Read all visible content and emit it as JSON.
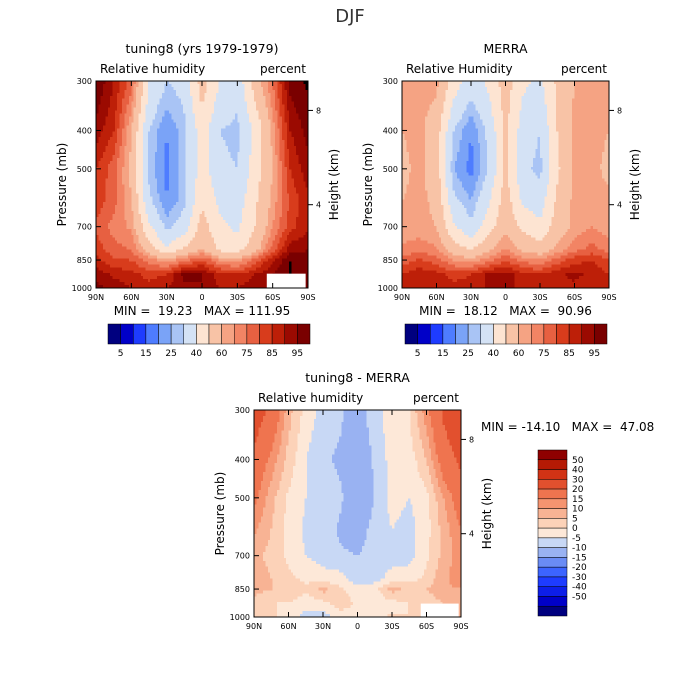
{
  "figure": {
    "title": "DJF"
  },
  "chart_data": [
    {
      "type": "heatmap",
      "id": "p1",
      "title": "tuning8 (yrs 1979-1979)",
      "left_label": "Relative humidity",
      "right_label": "percent",
      "ylabel": "Pressure (mb)",
      "y2label": "Height (km)",
      "x_ticks": [
        "90N",
        "60N",
        "30N",
        "0",
        "30S",
        "60S",
        "90S"
      ],
      "y_ticks": [
        "300",
        "400",
        "500",
        "700",
        "850",
        "1000"
      ],
      "y_tick_values": [
        300,
        400,
        500,
        700,
        850,
        1000
      ],
      "y2_ticks": [
        "8",
        "4"
      ],
      "y2_tick_pressures": [
        356,
        616
      ],
      "stats": "MIN =  19.23   MAX = 111.95",
      "xlim": [
        90,
        -90
      ],
      "ylim": [
        300,
        1000
      ],
      "grid": false,
      "palette": "rh",
      "blank_region": {
        "lat": [
          -55,
          -88
        ],
        "p": [
          920,
          1000
        ]
      },
      "field_nodes_lat": [
        90,
        75,
        60,
        45,
        30,
        15,
        0,
        -15,
        -30,
        -45,
        -60,
        -75,
        -90
      ],
      "field_nodes_p": [
        300,
        400,
        500,
        600,
        700,
        800,
        850,
        925,
        1000
      ],
      "field_values": [
        [
          95,
          85,
          72,
          40,
          30,
          33,
          55,
          40,
          33,
          55,
          70,
          92,
          96
        ],
        [
          88,
          80,
          60,
          30,
          20,
          28,
          45,
          30,
          28,
          42,
          62,
          85,
          92
        ],
        [
          80,
          72,
          58,
          28,
          18,
          28,
          45,
          32,
          30,
          45,
          60,
          80,
          88
        ],
        [
          78,
          72,
          60,
          32,
          20,
          28,
          48,
          38,
          35,
          48,
          62,
          76,
          84
        ],
        [
          74,
          68,
          64,
          42,
          28,
          35,
          55,
          42,
          38,
          50,
          65,
          78,
          84
        ],
        [
          78,
          72,
          70,
          55,
          42,
          52,
          60,
          48,
          46,
          56,
          72,
          88,
          90
        ],
        [
          82,
          76,
          75,
          68,
          62,
          68,
          75,
          65,
          62,
          72,
          84,
          95,
          92
        ],
        [
          88,
          84,
          82,
          78,
          80,
          92,
          90,
          82,
          80,
          85,
          90,
          95,
          92
        ],
        [
          92,
          88,
          85,
          82,
          85,
          88,
          90,
          85,
          85,
          88,
          90,
          95,
          92
        ]
      ]
    },
    {
      "type": "heatmap",
      "id": "p2",
      "title": "MERRA",
      "left_label": "Relative Humidity",
      "right_label": "percent",
      "ylabel": "Pressure (mb)",
      "y2label": "Height (km)",
      "x_ticks": [
        "90N",
        "60N",
        "30N",
        "0",
        "30S",
        "60S",
        "90S"
      ],
      "y_ticks": [
        "300",
        "400",
        "500",
        "700",
        "850",
        "1000"
      ],
      "y_tick_values": [
        300,
        400,
        500,
        700,
        850,
        1000
      ],
      "y2_ticks": [
        "8",
        "4"
      ],
      "y2_tick_pressures": [
        356,
        616
      ],
      "stats": "MIN =  18.12   MAX =  90.96",
      "xlim": [
        90,
        -90
      ],
      "ylim": [
        300,
        1000
      ],
      "grid": false,
      "palette": "rh",
      "blank_region": null,
      "field_nodes_lat": [
        90,
        75,
        60,
        45,
        30,
        15,
        0,
        -15,
        -30,
        -45,
        -60,
        -75,
        -90
      ],
      "field_nodes_p": [
        300,
        400,
        500,
        600,
        700,
        800,
        850,
        925,
        1000
      ],
      "field_values": [
        [
          62,
          62,
          62,
          45,
          35,
          42,
          55,
          42,
          38,
          52,
          60,
          62,
          62
        ],
        [
          60,
          62,
          55,
          30,
          20,
          32,
          52,
          35,
          30,
          50,
          62,
          62,
          60
        ],
        [
          58,
          62,
          55,
          25,
          18,
          30,
          52,
          32,
          28,
          48,
          62,
          62,
          58
        ],
        [
          60,
          62,
          58,
          32,
          25,
          38,
          55,
          38,
          35,
          52,
          62,
          62,
          62
        ],
        [
          62,
          62,
          60,
          42,
          32,
          45,
          58,
          48,
          42,
          55,
          62,
          65,
          62
        ],
        [
          66,
          68,
          66,
          55,
          50,
          58,
          66,
          58,
          55,
          62,
          68,
          72,
          68
        ],
        [
          72,
          76,
          72,
          65,
          62,
          68,
          74,
          68,
          66,
          72,
          78,
          80,
          75
        ],
        [
          80,
          84,
          82,
          78,
          80,
          86,
          88,
          82,
          80,
          84,
          86,
          84,
          80
        ],
        [
          82,
          85,
          84,
          82,
          82,
          86,
          86,
          84,
          82,
          84,
          84,
          82,
          80
        ]
      ]
    },
    {
      "type": "heatmap",
      "id": "p3",
      "title": "tuning8 - MERRA",
      "left_label": "Relative humidity",
      "right_label": "percent",
      "ylabel": "Pressure (mb)",
      "y2label": "Height (km)",
      "x_ticks": [
        "90N",
        "60N",
        "30N",
        "0",
        "30S",
        "60S",
        "90S"
      ],
      "y_ticks": [
        "300",
        "400",
        "500",
        "700",
        "850",
        "1000"
      ],
      "y_tick_values": [
        300,
        400,
        500,
        700,
        850,
        1000
      ],
      "y2_ticks": [
        "8",
        "4"
      ],
      "y2_tick_pressures": [
        356,
        616
      ],
      "stats": "MIN = -14.10   MAX =  47.08",
      "xlim": [
        90,
        -90
      ],
      "ylim": [
        300,
        1000
      ],
      "grid": false,
      "palette": "diff",
      "blank_region": {
        "lat": [
          -55,
          -88
        ],
        "p": [
          925,
          1000
        ]
      },
      "field_nodes_lat": [
        90,
        75,
        60,
        45,
        30,
        15,
        0,
        -15,
        -30,
        -45,
        -60,
        -75,
        -90
      ],
      "field_nodes_p": [
        300,
        400,
        500,
        600,
        700,
        800,
        850,
        925,
        1000
      ],
      "field_values": [
        [
          35,
          28,
          12,
          3,
          -2,
          -4,
          -8,
          -2,
          3,
          5,
          18,
          32,
          38
        ],
        [
          28,
          18,
          8,
          0,
          -4,
          -6,
          -10,
          -4,
          2,
          2,
          10,
          25,
          32
        ],
        [
          22,
          12,
          4,
          0,
          -2,
          -4,
          -10,
          -5,
          2,
          0,
          3,
          15,
          25
        ],
        [
          16,
          10,
          3,
          -1,
          -2,
          -6,
          -8,
          -3,
          0,
          -2,
          3,
          12,
          20
        ],
        [
          12,
          8,
          4,
          0,
          -2,
          -4,
          -5,
          -3,
          -2,
          -2,
          4,
          12,
          18
        ],
        [
          14,
          10,
          6,
          4,
          2,
          2,
          -4,
          -2,
          2,
          3,
          6,
          14,
          18
        ],
        [
          12,
          10,
          8,
          6,
          12,
          6,
          2,
          3,
          12,
          8,
          10,
          14,
          15
        ],
        [
          8,
          5,
          5,
          2,
          3,
          8,
          4,
          2,
          3,
          5,
          6,
          10,
          12
        ],
        [
          6,
          6,
          3,
          -2,
          -3,
          2,
          3,
          3,
          6,
          5,
          6,
          10,
          12
        ]
      ]
    }
  ],
  "colorbars": {
    "rh": {
      "colors": [
        "#00007f",
        "#0000c8",
        "#1e3cff",
        "#4e7cff",
        "#7aa3f7",
        "#a9c4f5",
        "#d4e2f5",
        "#fde4d2",
        "#f8c3a6",
        "#f5a383",
        "#f28464",
        "#e76041",
        "#d83c1c",
        "#bd1f08",
        "#9b0a01",
        "#7a0000"
      ],
      "labels": [
        "5",
        "15",
        "25",
        "40",
        "60",
        "75",
        "85",
        "95"
      ],
      "label_boundary_index": [
        1,
        3,
        5,
        7,
        9,
        11,
        13,
        15
      ],
      "levels": [
        5,
        10,
        15,
        20,
        25,
        30,
        40,
        50,
        60,
        65,
        70,
        75,
        80,
        85,
        90,
        95
      ]
    },
    "diff": {
      "colors": [
        "#00007f",
        "#0000c8",
        "#0d1ee8",
        "#1e3cff",
        "#3c64ff",
        "#6a8cf5",
        "#99b2f2",
        "#c8d8f5",
        "#fde8d8",
        "#fcd2b8",
        "#f8b394",
        "#f59470",
        "#ef744f",
        "#e2502e",
        "#d13315",
        "#b51a05",
        "#8f0000"
      ],
      "labels": [
        "50",
        "40",
        "30",
        "20",
        "15",
        "10",
        "5",
        "0",
        "-5",
        "-10",
        "-15",
        "-20",
        "-30",
        "-40",
        "-50"
      ],
      "levels": [
        -50,
        -40,
        -30,
        -20,
        -15,
        -10,
        -5,
        0,
        5,
        10,
        15,
        20,
        30,
        40,
        50
      ]
    }
  }
}
